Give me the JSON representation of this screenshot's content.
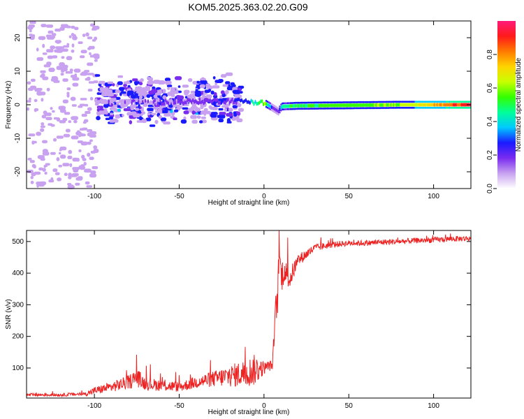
{
  "title": "KOM5.2025.363.02.20.G09",
  "chart_data": [
    {
      "type": "heatmap",
      "xlabel": "Height of straight line (km)",
      "ylabel": "Frequency (Hz)",
      "xlim": [
        -140,
        122
      ],
      "ylim": [
        -25,
        25
      ],
      "xticks": [
        -100,
        -50,
        0,
        50,
        100
      ],
      "yticks": [
        -20,
        -10,
        0,
        10,
        20
      ],
      "colorbar": {
        "label": "Normalized spectral amplitude",
        "range": [
          0,
          1
        ],
        "ticks": [
          "0.0",
          "0.2",
          "0.4",
          "0.6",
          "0.8"
        ],
        "colormap": [
          "#ffffff",
          "#c8a2f0",
          "#7a2cf0",
          "#1a1aff",
          "#00c8ff",
          "#00ff9a",
          "#33ff00",
          "#c8ff00",
          "#ffd400",
          "#ff7a00",
          "#ff1a1a",
          "#ff1a7a"
        ]
      },
      "features": [
        {
          "region": "ionospheric scatter, x -140 to -100",
          "freq_range_hz": [
            -25,
            25
          ],
          "amplitude": "0.0-0.1"
        },
        {
          "region": "band x -100 to -20",
          "freq_range_hz": [
            -8,
            10
          ],
          "amplitude": "0.1-0.3"
        },
        {
          "region": "direct signal line x 0 to 122",
          "freq_hz": 0,
          "amplitude": "0.5-1.0"
        }
      ],
      "ridge": {
        "x": [
          -100,
          -60,
          -20,
          -10,
          0,
          5,
          8,
          10,
          20,
          40,
          60,
          80,
          100,
          122
        ],
        "freq": [
          1,
          0.8,
          1.2,
          1,
          0.5,
          -1,
          -2,
          -0.5,
          -0.3,
          -0.2,
          -0.1,
          0,
          0,
          0
        ],
        "amplitude": [
          0.1,
          0.15,
          0.2,
          0.3,
          0.6,
          0.15,
          0.2,
          0.45,
          0.5,
          0.55,
          0.55,
          0.6,
          0.75,
          0.95
        ]
      }
    },
    {
      "type": "line",
      "xlabel": "Height of straight line (km)",
      "ylabel": "SNR (v/v)",
      "xlim": [
        -140,
        122
      ],
      "ylim": [
        5,
        535
      ],
      "xticks": [
        -100,
        -50,
        0,
        50,
        100
      ],
      "yticks": [
        100,
        200,
        300,
        400,
        500
      ],
      "color": "#ee2222",
      "series": [
        {
          "name": "SNR",
          "x": [
            -140,
            -120,
            -105,
            -100,
            -90,
            -80,
            -75,
            -70,
            -60,
            -50,
            -40,
            -30,
            -20,
            -10,
            -5,
            0,
            5,
            7,
            8,
            9,
            10,
            12,
            15,
            20,
            30,
            40,
            50,
            60,
            70,
            80,
            90,
            100,
            110,
            122
          ],
          "y": [
            15,
            15,
            18,
            28,
            40,
            55,
            70,
            50,
            45,
            40,
            55,
            65,
            75,
            85,
            95,
            100,
            110,
            280,
            320,
            480,
            390,
            410,
            380,
            440,
            480,
            490,
            495,
            495,
            498,
            500,
            503,
            505,
            508,
            510
          ],
          "noise": [
            5,
            5,
            6,
            12,
            16,
            22,
            30,
            20,
            18,
            16,
            20,
            25,
            35,
            45,
            50,
            20,
            15,
            60,
            60,
            40,
            60,
            40,
            35,
            20,
            12,
            10,
            9,
            9,
            9,
            9,
            9,
            9,
            9,
            9
          ]
        }
      ]
    }
  ]
}
